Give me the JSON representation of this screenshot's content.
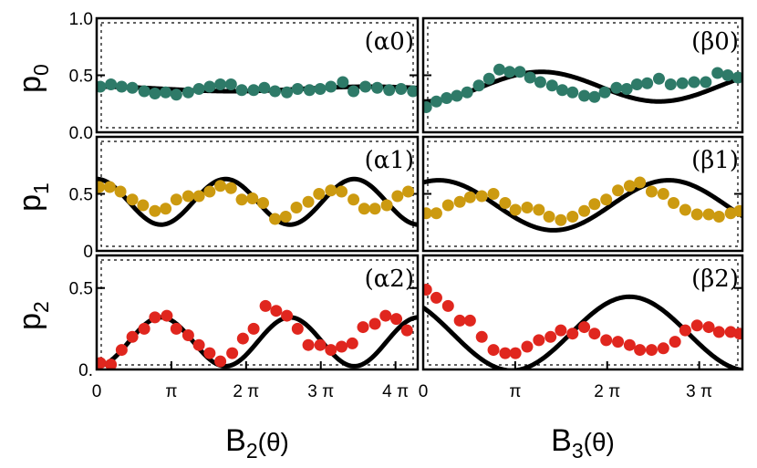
{
  "chart_data": [
    {
      "id": "alpha0",
      "type": "scatter",
      "annotation": "(α0)",
      "ylabel": "p",
      "ylabel_sub": "0",
      "xlim": [
        0,
        13.5
      ],
      "ylim": [
        0,
        1
      ],
      "yticks": [
        {
          "v": 1,
          "label": "1.0"
        },
        {
          "v": 0.5,
          "label": "0.5"
        },
        {
          "v": 0,
          "label": "0.0"
        }
      ],
      "xticks": [],
      "theory": {
        "a": 0.38,
        "b": 0.02,
        "c": 0.0,
        "w": 0.55
      },
      "series": [
        {
          "name": "p0",
          "color": "#2e7a68",
          "x": [
            0.15,
            0.6,
            1.05,
            1.5,
            2.0,
            2.45,
            2.9,
            3.35,
            3.85,
            4.3,
            4.75,
            5.2,
            5.65,
            6.1,
            6.6,
            7.05,
            7.5,
            8.0,
            8.45,
            8.95,
            9.4,
            9.85,
            10.35,
            10.8,
            11.3,
            11.8,
            12.3,
            12.8,
            13.3
          ],
          "y": [
            0.4,
            0.42,
            0.4,
            0.39,
            0.36,
            0.34,
            0.35,
            0.33,
            0.35,
            0.38,
            0.4,
            0.42,
            0.42,
            0.37,
            0.37,
            0.39,
            0.36,
            0.35,
            0.38,
            0.37,
            0.38,
            0.4,
            0.44,
            0.36,
            0.4,
            0.39,
            0.37,
            0.38,
            0.36
          ]
        }
      ]
    },
    {
      "id": "beta0",
      "type": "scatter",
      "annotation": "(β0)",
      "ylabel": "",
      "ylabel_sub": "",
      "xlim": [
        0,
        10.9
      ],
      "ylim": [
        0,
        1
      ],
      "yticks": [
        {
          "v": 1,
          "label": ""
        },
        {
          "v": 0.5,
          "label": ""
        },
        {
          "v": 0,
          "label": ""
        }
      ],
      "xticks": [],
      "theory": {
        "a": 0.4,
        "b": -0.13,
        "c": 0.0,
        "w": 0.78
      },
      "series": [
        {
          "name": "p0",
          "color": "#2e7a68",
          "x": [
            0.1,
            0.45,
            0.8,
            1.15,
            1.5,
            1.9,
            2.25,
            2.6,
            2.95,
            3.3,
            3.65,
            4.0,
            4.4,
            4.75,
            5.1,
            5.5,
            5.85,
            6.2,
            6.6,
            6.95,
            7.3,
            7.65,
            8.05,
            8.45,
            8.85,
            9.25,
            9.65,
            10.05,
            10.4,
            10.75
          ],
          "y": [
            0.22,
            0.27,
            0.3,
            0.32,
            0.35,
            0.41,
            0.47,
            0.55,
            0.53,
            0.53,
            0.48,
            0.44,
            0.41,
            0.37,
            0.35,
            0.32,
            0.31,
            0.35,
            0.39,
            0.38,
            0.42,
            0.43,
            0.47,
            0.42,
            0.43,
            0.44,
            0.44,
            0.52,
            0.5,
            0.48
          ]
        }
      ]
    },
    {
      "id": "alpha1",
      "type": "scatter",
      "annotation": "(α1)",
      "ylabel": "p",
      "ylabel_sub": "1",
      "xlim": [
        0,
        13.5
      ],
      "ylim": [
        0,
        1
      ],
      "yticks": [
        {
          "v": 0.5,
          "label": "0.5"
        },
        {
          "v": 0,
          "label": "0"
        }
      ],
      "xticks": [],
      "theory": {
        "a": 0.43,
        "b": 0.2,
        "c": 0.0,
        "w": 1.16
      },
      "series": [
        {
          "name": "p1",
          "color": "#cc9a10",
          "x": [
            0.1,
            0.55,
            1.0,
            1.5,
            1.95,
            2.45,
            2.9,
            3.35,
            3.85,
            4.3,
            4.75,
            5.2,
            5.65,
            6.1,
            6.55,
            7.0,
            7.5,
            7.95,
            8.4,
            8.9,
            9.35,
            9.85,
            10.3,
            10.8,
            11.25,
            11.7,
            12.2,
            12.65,
            13.1
          ],
          "y": [
            0.56,
            0.56,
            0.52,
            0.45,
            0.4,
            0.35,
            0.37,
            0.45,
            0.48,
            0.48,
            0.52,
            0.57,
            0.55,
            0.45,
            0.46,
            0.42,
            0.28,
            0.3,
            0.38,
            0.43,
            0.5,
            0.53,
            0.52,
            0.45,
            0.37,
            0.37,
            0.4,
            0.48,
            0.52
          ]
        }
      ]
    },
    {
      "id": "beta1",
      "type": "scatter",
      "annotation": "(β1)",
      "ylabel": "",
      "ylabel_sub": "",
      "xlim": [
        0,
        10.9
      ],
      "ylim": [
        0,
        1
      ],
      "yticks": [
        {
          "v": 0.5,
          "label": ""
        },
        {
          "v": 0,
          "label": ""
        }
      ],
      "xticks": [],
      "theory": {
        "a": 0.4,
        "b": 0.2,
        "c": 0.09,
        "w": 0.8
      },
      "series": [
        {
          "name": "p1",
          "color": "#cc9a10",
          "x": [
            0.1,
            0.45,
            0.85,
            1.25,
            1.6,
            2.0,
            2.4,
            2.8,
            3.15,
            3.55,
            3.95,
            4.3,
            4.7,
            5.1,
            5.5,
            5.85,
            6.25,
            6.65,
            7.05,
            7.4,
            7.8,
            8.2,
            8.55,
            8.95,
            9.35,
            9.75,
            10.1,
            10.5,
            10.8
          ],
          "y": [
            0.33,
            0.33,
            0.4,
            0.43,
            0.47,
            0.48,
            0.5,
            0.42,
            0.36,
            0.38,
            0.36,
            0.3,
            0.27,
            0.3,
            0.35,
            0.41,
            0.45,
            0.53,
            0.57,
            0.6,
            0.52,
            0.5,
            0.42,
            0.36,
            0.32,
            0.32,
            0.3,
            0.33,
            0.35
          ]
        }
      ]
    },
    {
      "id": "alpha2",
      "type": "scatter",
      "annotation": "(α2)",
      "ylabel": "p",
      "ylabel_sub": "2",
      "xlim": [
        0,
        13.5
      ],
      "ylim": [
        0,
        0.7
      ],
      "yticks": [
        {
          "v": 0.5,
          "label": "0.5"
        },
        {
          "v": 0,
          "label": "0."
        }
      ],
      "xticks": [
        {
          "v": 0,
          "label": "0"
        },
        {
          "v": 3.14159,
          "label": "π"
        },
        {
          "v": 6.28318,
          "label": "2 π"
        },
        {
          "v": 9.42478,
          "label": "3 π"
        },
        {
          "v": 12.56637,
          "label": "4 π"
        }
      ],
      "xlabel": "B",
      "xlabel_sub": "2",
      "xlabel_arg": "(θ)",
      "theory": {
        "a": 0.17,
        "b": -0.15,
        "c": 0.0,
        "w": 1.16
      },
      "series": [
        {
          "name": "p2",
          "color": "#e0261e",
          "x": [
            0.15,
            0.6,
            1.05,
            1.5,
            2.0,
            2.45,
            2.95,
            3.35,
            3.85,
            4.3,
            4.75,
            5.2,
            5.7,
            6.15,
            6.6,
            7.1,
            7.55,
            8.0,
            8.45,
            8.9,
            9.4,
            9.85,
            10.3,
            10.75,
            11.2,
            11.7,
            12.15,
            12.6,
            13.05
          ],
          "y": [
            0.04,
            0.03,
            0.12,
            0.2,
            0.25,
            0.32,
            0.33,
            0.25,
            0.21,
            0.15,
            0.1,
            0.05,
            0.1,
            0.19,
            0.25,
            0.39,
            0.36,
            0.33,
            0.25,
            0.15,
            0.15,
            0.12,
            0.14,
            0.16,
            0.26,
            0.28,
            0.33,
            0.31,
            0.24
          ]
        }
      ]
    },
    {
      "id": "beta2",
      "type": "scatter",
      "annotation": "(β2)",
      "ylabel": "",
      "ylabel_sub": "",
      "xlim": [
        0,
        10.9
      ],
      "ylim": [
        0,
        0.7
      ],
      "yticks": [
        {
          "v": 0.5,
          "label": ""
        },
        {
          "v": 0,
          "label": ""
        }
      ],
      "xticks": [
        {
          "v": 0,
          "label": "0"
        },
        {
          "v": 3.14159,
          "label": "π"
        },
        {
          "v": 6.28318,
          "label": "2 π"
        },
        {
          "v": 9.42478,
          "label": "3 π"
        }
      ],
      "xlabel": "B",
      "xlabel_sub": "3",
      "xlabel_arg": "(θ)",
      "theory": {
        "a": 0.22,
        "b": 0.16,
        "c": -0.16,
        "w": 0.78
      },
      "series": [
        {
          "name": "p2",
          "color": "#e0261e",
          "x": [
            0.1,
            0.45,
            0.85,
            1.25,
            1.6,
            2.0,
            2.4,
            2.8,
            3.15,
            3.55,
            3.95,
            4.35,
            4.7,
            5.1,
            5.5,
            5.85,
            6.25,
            6.65,
            7.05,
            7.4,
            7.8,
            8.2,
            8.6,
            8.95,
            9.35,
            9.75,
            10.1,
            10.5,
            10.8
          ],
          "y": [
            0.49,
            0.44,
            0.39,
            0.3,
            0.3,
            0.2,
            0.12,
            0.1,
            0.1,
            0.14,
            0.18,
            0.2,
            0.24,
            0.22,
            0.26,
            0.22,
            0.18,
            0.17,
            0.15,
            0.12,
            0.12,
            0.13,
            0.17,
            0.24,
            0.27,
            0.26,
            0.23,
            0.23,
            0.22
          ]
        }
      ]
    }
  ]
}
